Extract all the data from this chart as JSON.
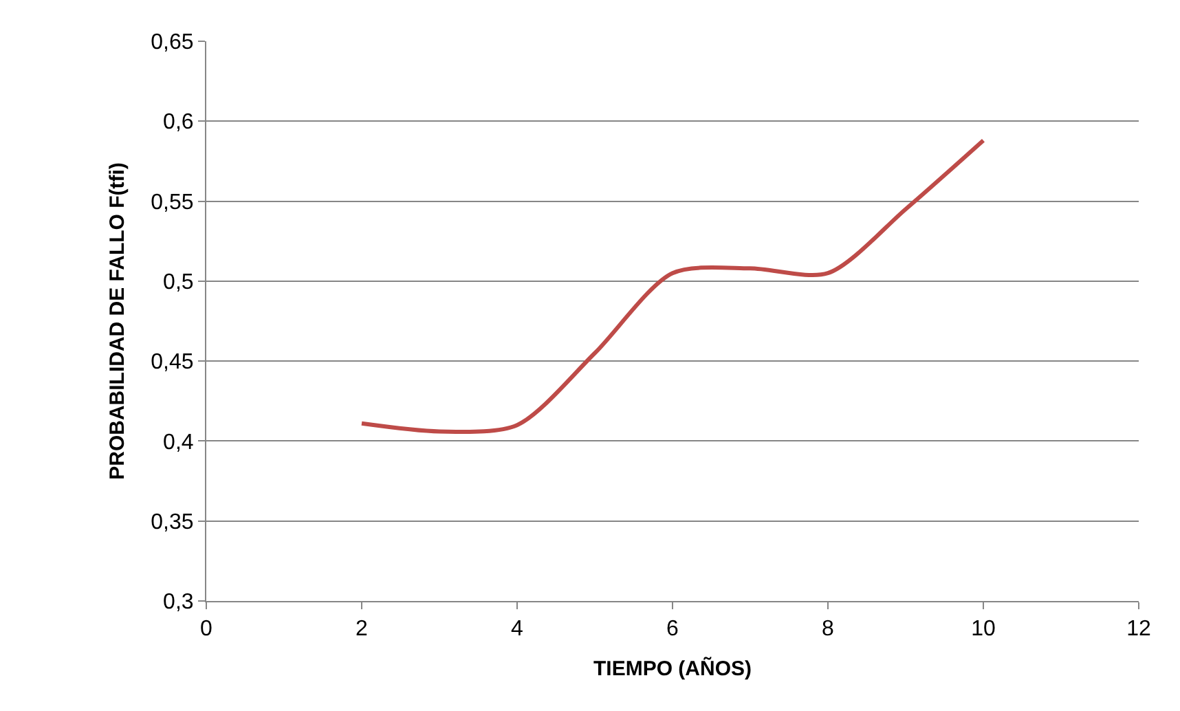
{
  "chart_data": {
    "type": "line",
    "xlabel": "TIEMPO (AÑOS)",
    "ylabel": "PROBABILIDAD DE FALLO F(tfi)",
    "x": [
      2,
      3,
      4,
      5,
      6,
      7,
      8,
      9,
      10
    ],
    "series": [
      {
        "color": "#be4b48",
        "values": [
          0.411,
          0.406,
          0.41,
          0.455,
          0.505,
          0.508,
          0.505,
          0.545,
          0.588
        ]
      }
    ],
    "xlim": [
      0,
      12
    ],
    "xticks": [
      {
        "value": 0,
        "label": "0"
      },
      {
        "value": 2,
        "label": "2"
      },
      {
        "value": 4,
        "label": "4"
      },
      {
        "value": 6,
        "label": "6"
      },
      {
        "value": 8,
        "label": "8"
      },
      {
        "value": 10,
        "label": "10"
      },
      {
        "value": 12,
        "label": "12"
      }
    ],
    "ylim": [
      0.3,
      0.65
    ],
    "yticks": [
      {
        "value": 0.3,
        "label": "0,3"
      },
      {
        "value": 0.35,
        "label": "0,35"
      },
      {
        "value": 0.4,
        "label": "0,4"
      },
      {
        "value": 0.45,
        "label": "0,45"
      },
      {
        "value": 0.5,
        "label": "0,5"
      },
      {
        "value": 0.55,
        "label": "0,55"
      },
      {
        "value": 0.6,
        "label": "0,6"
      },
      {
        "value": 0.65,
        "label": "0,65"
      }
    ],
    "grid": "y",
    "marker": "none",
    "line_style": "solid"
  }
}
